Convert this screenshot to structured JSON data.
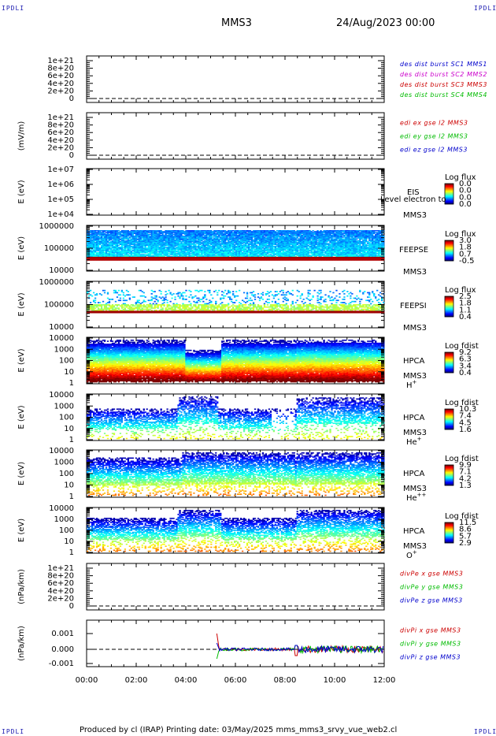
{
  "corners": {
    "tl": "IPDLI",
    "tr": "IPDLI",
    "bl": "IPDLI",
    "br": "IPDLI"
  },
  "header": {
    "spacecraft": "MMS3",
    "date": "24/Aug/2023 00:00"
  },
  "footer": {
    "text": "Produced by cl (IRAP)   Printing date: 03/May/2025   mms_mms3_srvy_vue_web2.cl"
  },
  "colors": {
    "blue": "#0000cc",
    "magenta": "#cc00cc",
    "red": "#cc0000",
    "green": "#00bb00"
  },
  "x_axis": {
    "ticks": [
      "00:00",
      "02:00",
      "04:00",
      "06:00",
      "08:00",
      "10:00",
      "12:00"
    ]
  },
  "panels": {
    "p1": {
      "yticks": [
        "1e+21",
        "8e+20",
        "6e+20",
        "4e+20",
        "2e+20",
        "0"
      ],
      "legend": [
        {
          "text": "des dist burst SC1 MMS1",
          "color": "#0000cc"
        },
        {
          "text": "des dist burst SC2 MMS2",
          "color": "#cc00cc"
        },
        {
          "text": "des dist burst SC3 MMS3",
          "color": "#cc0000"
        },
        {
          "text": "des dist burst SC4 MMS4",
          "color": "#00bb00"
        }
      ]
    },
    "p2": {
      "ylabel": "(mV/m)",
      "yticks": [
        "1e+21",
        "8e+20",
        "6e+20",
        "4e+20",
        "2e+20",
        "0"
      ],
      "legend": [
        {
          "text": "edi ex gse l2 MMS3",
          "color": "#cc0000"
        },
        {
          "text": "edi ey gse l2 MMS3",
          "color": "#00bb00"
        },
        {
          "text": "edi ez gse l2 MMS3",
          "color": "#0000cc"
        }
      ]
    },
    "p3": {
      "ylabel": "E (eV)",
      "yticks": [
        "1e+07",
        "1e+06",
        "1e+05",
        "1e+04"
      ],
      "name1": "EIS",
      "overlay": "Level electron to",
      "name2": "MMS3",
      "cbar_title": "Log flux",
      "cbar_ticks": [
        "0.0",
        "0.0",
        "0.0",
        "0.0"
      ]
    },
    "p4": {
      "ylabel": "E (eV)",
      "yticks": [
        "1000000",
        "100000",
        "10000"
      ],
      "name1": "FEEPSE",
      "name2": "MMS3",
      "cbar_title": "Log flux",
      "cbar_ticks": [
        "3.0",
        "1.8",
        "0.7",
        "-0.5"
      ]
    },
    "p5": {
      "ylabel": "E (eV)",
      "yticks": [
        "1000000",
        "100000",
        "10000"
      ],
      "name1": "FEEPSI",
      "name2": "MMS3",
      "cbar_title": "Log flux",
      "cbar_ticks": [
        "2.5",
        "1.8",
        "1.1",
        "0.4"
      ]
    },
    "p6": {
      "ylabel": "E (eV)",
      "yticks": [
        "10000",
        "1000",
        "100",
        "10",
        "1"
      ],
      "name1": "HPCA",
      "name2": "MMS3",
      "species": "H",
      "charge": "+",
      "cbar_title": "Log fdist",
      "cbar_ticks": [
        "9.2",
        "6.3",
        "3.4",
        "0.4"
      ]
    },
    "p7": {
      "ylabel": "E (eV)",
      "yticks": [
        "10000",
        "1000",
        "100",
        "10",
        "1"
      ],
      "name1": "HPCA",
      "name2": "MMS3",
      "species": "He",
      "charge": "+",
      "cbar_title": "Log fdist",
      "cbar_ticks": [
        "10.3",
        "7.4",
        "4.5",
        "1.6"
      ]
    },
    "p8": {
      "ylabel": "E (eV)",
      "yticks": [
        "10000",
        "1000",
        "100",
        "10",
        "1"
      ],
      "name1": "HPCA",
      "name2": "MMS3",
      "species": "He",
      "charge": "++",
      "cbar_title": "Log fdist",
      "cbar_ticks": [
        "9.9",
        "7.1",
        "4.2",
        "1.3"
      ]
    },
    "p9": {
      "ylabel": "E (eV)",
      "yticks": [
        "10000",
        "1000",
        "100",
        "10",
        "1"
      ],
      "name1": "HPCA",
      "name2": "MMS3",
      "species": "O",
      "charge": "+",
      "cbar_title": "Log fdist",
      "cbar_ticks": [
        "11.5",
        "8.6",
        "5.7",
        "2.9"
      ]
    },
    "p10": {
      "ylabel": "(nPa/km)",
      "yticks": [
        "1e+21",
        "8e+20",
        "6e+20",
        "4e+20",
        "2e+20",
        "0"
      ],
      "legend": [
        {
          "text": "divPe x gse MMS3",
          "color": "#cc0000"
        },
        {
          "text": "divPe y gse MMS3",
          "color": "#00bb00"
        },
        {
          "text": "divPe z gse MMS3",
          "color": "#0000cc"
        }
      ]
    },
    "p11": {
      "ylabel": "(nPa/km)",
      "yticks": [
        "0.001",
        "0.000",
        "-0.001"
      ],
      "legend": [
        {
          "text": "divPi x gse MMS3",
          "color": "#cc0000"
        },
        {
          "text": "divPi y gse MMS3",
          "color": "#00bb00"
        },
        {
          "text": "divPi z gse MMS3",
          "color": "#0000cc"
        }
      ]
    }
  },
  "chart_data": [
    {
      "type": "line",
      "panel": "p1",
      "x_range": [
        "00:00",
        "12:00"
      ],
      "ylim": [
        0,
        1e+21
      ],
      "series": [],
      "note_dashed_zero": true
    },
    {
      "type": "line",
      "panel": "p2",
      "x_range": [
        "00:00",
        "12:00"
      ],
      "ylim": [
        0,
        1e+21
      ],
      "series": []
    },
    {
      "type": "heatmap",
      "panel": "p3",
      "x_range": [
        "00:00",
        "12:00"
      ],
      "ylim": [
        10000.0,
        10000000.0
      ],
      "log_y": true
    },
    {
      "type": "heatmap",
      "panel": "p4",
      "x_range": [
        "00:00",
        "12:00"
      ],
      "ylim": [
        10000.0,
        1000000.0
      ],
      "log_y": true
    },
    {
      "type": "heatmap",
      "panel": "p5",
      "x_range": [
        "00:00",
        "12:00"
      ],
      "ylim": [
        10000.0,
        1000000.0
      ],
      "log_y": true
    },
    {
      "type": "heatmap",
      "panel": "p6",
      "x_range": [
        "00:00",
        "12:00"
      ],
      "ylim": [
        1,
        10000.0
      ],
      "log_y": true
    },
    {
      "type": "heatmap",
      "panel": "p7",
      "x_range": [
        "00:00",
        "12:00"
      ],
      "ylim": [
        1,
        10000.0
      ],
      "log_y": true
    },
    {
      "type": "heatmap",
      "panel": "p8",
      "x_range": [
        "00:00",
        "12:00"
      ],
      "ylim": [
        1,
        10000.0
      ],
      "log_y": true
    },
    {
      "type": "heatmap",
      "panel": "p9",
      "x_range": [
        "00:00",
        "12:00"
      ],
      "ylim": [
        1,
        10000.0
      ],
      "log_y": true
    },
    {
      "type": "line",
      "panel": "p10",
      "x_range": [
        "00:00",
        "12:00"
      ],
      "ylim": [
        0,
        1e+21
      ],
      "series": []
    },
    {
      "type": "line",
      "panel": "p11",
      "x_range": [
        "00:00",
        "12:00"
      ],
      "ylim": [
        -0.0015,
        0.0015
      ],
      "series": [
        {
          "name": "divPi x gse MMS3",
          "x": [
            "05:15",
            "06:00",
            "08:00",
            "08:30",
            "10:00",
            "12:00"
          ],
          "y": [
            0.001,
            0.0,
            0.0,
            -0.0003,
            0.0001,
            0.0
          ]
        },
        {
          "name": "divPi y gse MMS3",
          "x": [
            "05:15",
            "06:00",
            "08:00",
            "08:30",
            "10:00",
            "12:00"
          ],
          "y": [
            -0.0006,
            0.0,
            0.0,
            0.0002,
            0.0001,
            0.0
          ]
        },
        {
          "name": "divPi z gse MMS3",
          "x": [
            "05:15",
            "06:00",
            "08:00",
            "08:30",
            "10:00",
            "12:00"
          ],
          "y": [
            0.0004,
            0.0,
            0.0,
            0.0002,
            0.0,
            0.0
          ]
        }
      ]
    }
  ]
}
